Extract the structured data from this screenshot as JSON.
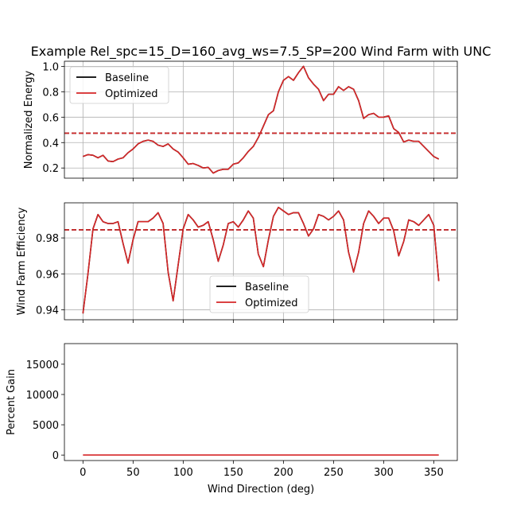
{
  "figure": {
    "title": "Example Rel_spc=15_D=160_avg_ws=7.5_SP=200 Wind Farm with UNC",
    "xlabel": "Wind Direction (deg)"
  },
  "colors": {
    "baseline": "#000000",
    "optimized": "#d62728",
    "grid": "#b0b0b0"
  },
  "chart_data": [
    {
      "type": "line",
      "ylabel": "Normalized Energy",
      "xlim": [
        -18.5,
        373.5
      ],
      "ylim": [
        0.12,
        1.04
      ],
      "xticks": [
        0,
        50,
        100,
        150,
        200,
        250,
        300,
        350
      ],
      "yticks": [
        0.2,
        0.4,
        0.6,
        0.8,
        1.0
      ],
      "ytick_labels": [
        "0.2",
        "0.4",
        "0.6",
        "0.8",
        "1.0"
      ],
      "grid": true,
      "legend_position": "upper-left",
      "x": [
        0,
        5,
        10,
        15,
        20,
        25,
        30,
        35,
        40,
        45,
        50,
        55,
        60,
        65,
        70,
        75,
        80,
        85,
        90,
        95,
        100,
        105,
        110,
        115,
        120,
        125,
        130,
        135,
        140,
        145,
        150,
        155,
        160,
        165,
        170,
        175,
        180,
        185,
        190,
        195,
        200,
        205,
        210,
        215,
        220,
        225,
        230,
        235,
        240,
        245,
        250,
        255,
        260,
        265,
        270,
        275,
        280,
        285,
        290,
        295,
        300,
        305,
        310,
        315,
        320,
        325,
        330,
        335,
        340,
        345,
        350,
        355
      ],
      "series": [
        {
          "name": "Baseline",
          "color": "baseline",
          "style": "solid",
          "values": [
            0.29,
            0.305,
            0.3,
            0.28,
            0.3,
            0.255,
            0.25,
            0.27,
            0.28,
            0.32,
            0.35,
            0.39,
            0.41,
            0.42,
            0.41,
            0.38,
            0.37,
            0.39,
            0.35,
            0.325,
            0.28,
            0.23,
            0.235,
            0.22,
            0.2,
            0.205,
            0.16,
            0.18,
            0.19,
            0.19,
            0.23,
            0.24,
            0.28,
            0.33,
            0.37,
            0.44,
            0.53,
            0.62,
            0.65,
            0.8,
            0.89,
            0.92,
            0.89,
            0.95,
            1.0,
            0.91,
            0.86,
            0.82,
            0.73,
            0.78,
            0.78,
            0.84,
            0.81,
            0.84,
            0.82,
            0.73,
            0.59,
            0.62,
            0.63,
            0.6,
            0.6,
            0.61,
            0.51,
            0.48,
            0.405,
            0.42,
            0.41,
            0.41,
            0.37,
            0.33,
            0.29,
            0.27
          ]
        },
        {
          "name": "Optimized",
          "color": "optimized",
          "style": "solid",
          "values": [
            0.29,
            0.305,
            0.3,
            0.28,
            0.3,
            0.255,
            0.25,
            0.27,
            0.28,
            0.32,
            0.35,
            0.39,
            0.41,
            0.42,
            0.41,
            0.38,
            0.37,
            0.39,
            0.35,
            0.325,
            0.28,
            0.23,
            0.235,
            0.22,
            0.2,
            0.205,
            0.16,
            0.18,
            0.19,
            0.19,
            0.23,
            0.24,
            0.28,
            0.33,
            0.37,
            0.44,
            0.53,
            0.62,
            0.65,
            0.8,
            0.89,
            0.92,
            0.89,
            0.95,
            1.0,
            0.91,
            0.86,
            0.82,
            0.73,
            0.78,
            0.78,
            0.84,
            0.81,
            0.84,
            0.82,
            0.73,
            0.59,
            0.62,
            0.63,
            0.6,
            0.6,
            0.61,
            0.51,
            0.48,
            0.405,
            0.42,
            0.41,
            0.41,
            0.37,
            0.33,
            0.29,
            0.27
          ]
        }
      ],
      "hlines": [
        {
          "series": "Baseline",
          "value": 0.474,
          "color": "baseline",
          "style": "dashed"
        },
        {
          "series": "Optimized",
          "value": 0.474,
          "color": "optimized",
          "style": "dashed"
        }
      ]
    },
    {
      "type": "line",
      "ylabel": "Wind Farm Efficiency",
      "xlim": [
        -18.5,
        373.5
      ],
      "ylim": [
        0.9345,
        0.9995
      ],
      "xticks": [
        0,
        50,
        100,
        150,
        200,
        250,
        300,
        350
      ],
      "yticks": [
        0.94,
        0.96,
        0.98
      ],
      "ytick_labels": [
        "0.94",
        "0.96",
        "0.98"
      ],
      "grid": true,
      "legend_position": "lower-center",
      "x": [
        0,
        5,
        10,
        15,
        20,
        25,
        30,
        35,
        40,
        45,
        50,
        55,
        60,
        65,
        70,
        75,
        80,
        85,
        90,
        95,
        100,
        105,
        110,
        115,
        120,
        125,
        130,
        135,
        140,
        145,
        150,
        155,
        160,
        165,
        170,
        175,
        180,
        185,
        190,
        195,
        200,
        205,
        210,
        215,
        220,
        225,
        230,
        235,
        240,
        245,
        250,
        255,
        260,
        265,
        270,
        275,
        280,
        285,
        290,
        295,
        300,
        305,
        310,
        315,
        320,
        325,
        330,
        335,
        340,
        345,
        350,
        355
      ],
      "series": [
        {
          "name": "Baseline",
          "color": "baseline",
          "style": "solid",
          "values": [
            0.938,
            0.96,
            0.985,
            0.993,
            0.989,
            0.988,
            0.988,
            0.989,
            0.977,
            0.966,
            0.979,
            0.989,
            0.989,
            0.989,
            0.991,
            0.994,
            0.988,
            0.961,
            0.945,
            0.965,
            0.985,
            0.993,
            0.99,
            0.986,
            0.987,
            0.989,
            0.979,
            0.967,
            0.976,
            0.988,
            0.989,
            0.986,
            0.99,
            0.995,
            0.991,
            0.971,
            0.964,
            0.979,
            0.992,
            0.997,
            0.995,
            0.993,
            0.994,
            0.994,
            0.988,
            0.981,
            0.985,
            0.993,
            0.992,
            0.99,
            0.992,
            0.995,
            0.99,
            0.972,
            0.961,
            0.972,
            0.988,
            0.995,
            0.992,
            0.988,
            0.991,
            0.991,
            0.984,
            0.97,
            0.978,
            0.99,
            0.989,
            0.987,
            0.99,
            0.993,
            0.987,
            0.956
          ]
        },
        {
          "name": "Optimized",
          "color": "optimized",
          "style": "solid",
          "values": [
            0.938,
            0.96,
            0.985,
            0.993,
            0.989,
            0.988,
            0.988,
            0.989,
            0.977,
            0.966,
            0.979,
            0.989,
            0.989,
            0.989,
            0.991,
            0.994,
            0.988,
            0.961,
            0.945,
            0.965,
            0.985,
            0.993,
            0.99,
            0.986,
            0.987,
            0.989,
            0.979,
            0.967,
            0.976,
            0.988,
            0.989,
            0.986,
            0.99,
            0.995,
            0.991,
            0.971,
            0.964,
            0.979,
            0.992,
            0.997,
            0.995,
            0.993,
            0.994,
            0.994,
            0.988,
            0.981,
            0.985,
            0.993,
            0.992,
            0.99,
            0.992,
            0.995,
            0.99,
            0.972,
            0.961,
            0.972,
            0.988,
            0.995,
            0.992,
            0.988,
            0.991,
            0.991,
            0.984,
            0.97,
            0.978,
            0.99,
            0.989,
            0.987,
            0.99,
            0.993,
            0.987,
            0.956
          ]
        }
      ],
      "hlines": [
        {
          "series": "Baseline",
          "value": 0.9845,
          "color": "baseline",
          "style": "dashed"
        },
        {
          "series": "Optimized",
          "value": 0.9845,
          "color": "optimized",
          "style": "dashed"
        }
      ]
    },
    {
      "type": "line",
      "ylabel": "Percent Gain",
      "xlim": [
        -18.5,
        373.5
      ],
      "ylim": [
        -900,
        18400
      ],
      "xticks": [
        0,
        50,
        100,
        150,
        200,
        250,
        300,
        350
      ],
      "xtick_labels": [
        "0",
        "50",
        "100",
        "150",
        "200",
        "250",
        "300",
        "350"
      ],
      "yticks": [
        0,
        5000,
        10000,
        15000
      ],
      "ytick_labels": [
        "0",
        "5000",
        "10000",
        "15000"
      ],
      "grid": false,
      "x": [
        0,
        355
      ],
      "series": [
        {
          "color": "optimized",
          "style": "solid",
          "values": [
            0,
            0
          ]
        }
      ]
    }
  ],
  "legend": {
    "entries": [
      {
        "label": "Baseline",
        "color": "baseline"
      },
      {
        "label": "Optimized",
        "color": "optimized"
      }
    ]
  }
}
